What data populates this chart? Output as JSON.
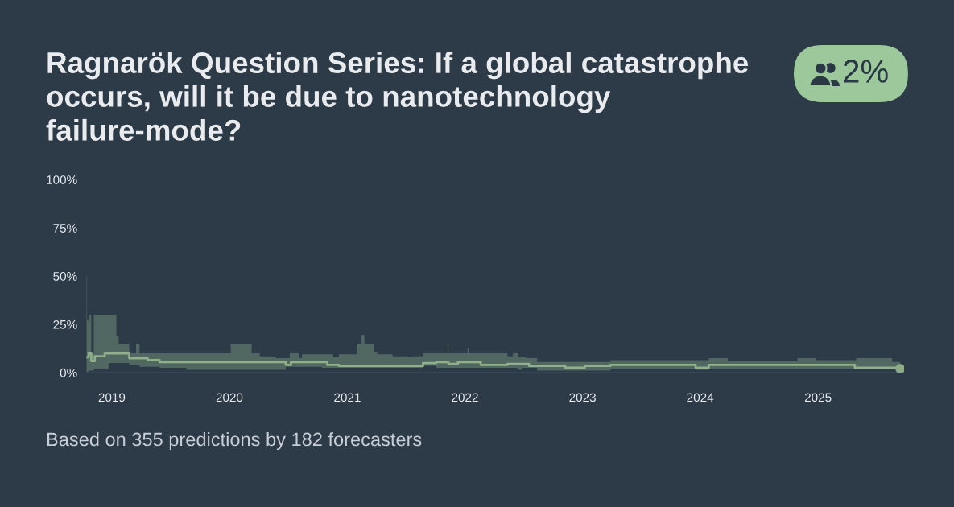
{
  "chart_data": {
    "type": "step",
    "title": "Ragnarök Question Series: If a global catastrophe occurs, will it be due to nanotechnology failure-mode?",
    "x": [
      "2018-10-14",
      "2018-10-16",
      "2018-10-21",
      "2018-10-29",
      "2018-11-06",
      "2018-11-09",
      "2018-12-10",
      "2018-12-22",
      "2019-01-15",
      "2019-01-22",
      "2019-02-24",
      "2019-03-17",
      "2019-03-28",
      "2019-04-22",
      "2019-05-29",
      "2019-08-20",
      "2020-01-05",
      "2020-03-10",
      "2020-04-04",
      "2020-05-24",
      "2020-06-24",
      "2020-07-06",
      "2020-07-10",
      "2020-08-04",
      "2020-08-13",
      "2020-10-14",
      "2020-10-31",
      "2020-11-18",
      "2020-12-06",
      "2021-02-01",
      "2021-02-13",
      "2021-02-23",
      "2021-03-24",
      "2021-04-04",
      "2021-05-21",
      "2021-07-09",
      "2021-07-21",
      "2021-08-24",
      "2021-10-04",
      "2021-11-08",
      "2021-11-11",
      "2021-12-10",
      "2022-01-09",
      "2022-01-12",
      "2022-02-19",
      "2022-05-13",
      "2022-05-30",
      "2022-06-15",
      "2022-06-28",
      "2022-07-10",
      "2022-07-19",
      "2022-08-13",
      "2022-11-08",
      "2023-01-08",
      "2023-03-29",
      "2023-12-18",
      "2024-01-28",
      "2024-03-27",
      "2024-10-29",
      "2024-12-25",
      "2025-04-25",
      "2025-04-29",
      "2025-08-19",
      "2025-09-13"
    ],
    "series": [
      {
        "color": "#8fb08a",
        "values": [
          8,
          8,
          10,
          6,
          6,
          8.5,
          10,
          10,
          10,
          10,
          7.5,
          7.5,
          7.5,
          6.5,
          5.5,
          5.5,
          5.5,
          5.5,
          5.5,
          5.5,
          4,
          4,
          5.5,
          5.5,
          5.5,
          5.5,
          4,
          4,
          3.5,
          3.5,
          3.5,
          3.5,
          3.5,
          3.5,
          3.5,
          3.5,
          3.5,
          5,
          5.5,
          5.5,
          4.5,
          5.5,
          5.5,
          5.5,
          4,
          4.5,
          4.5,
          4.5,
          4.5,
          4.5,
          3.5,
          3.5,
          2.5,
          3.5,
          4,
          2.5,
          4,
          4,
          4,
          4,
          2.5,
          2.5,
          2.5,
          2
        ],
        "lower": [
          0.5,
          0.5,
          1,
          1,
          2,
          2,
          2,
          5,
          5,
          5,
          4,
          4,
          3,
          3,
          2.5,
          1.5,
          1.5,
          1.5,
          1.5,
          1.5,
          3,
          3,
          3,
          3,
          3,
          2.5,
          2.5,
          2.5,
          2.5,
          2.5,
          2.5,
          2.5,
          2.5,
          2.5,
          2.5,
          2.5,
          2.5,
          3.5,
          2.5,
          2.5,
          2.5,
          2.5,
          2.5,
          2.5,
          2.5,
          2.5,
          2.5,
          1.5,
          2.5,
          2.5,
          2.5,
          1,
          1,
          1,
          2,
          1.5,
          2,
          2,
          2,
          2,
          2,
          2,
          2,
          1.5
        ],
        "upper": [
          50,
          27,
          30,
          10,
          30,
          30,
          30,
          30,
          19,
          15,
          10,
          15,
          10,
          10,
          10,
          10,
          15,
          10,
          8.5,
          7.5,
          7.5,
          10,
          10,
          7.5,
          9.5,
          9.5,
          9.5,
          8,
          9.5,
          15,
          19.5,
          15,
          10.5,
          9.5,
          8.5,
          8,
          8.5,
          10,
          10,
          15,
          10,
          10,
          13,
          10,
          10,
          8.5,
          10,
          8,
          8,
          7.5,
          7.5,
          5.5,
          5.5,
          5.5,
          6.5,
          6.5,
          7.5,
          6,
          7.5,
          6.5,
          6.5,
          7.5,
          5.5,
          5.5
        ]
      },
      {
        "type": "scatter",
        "color": "#8cab87",
        "marker": "circle",
        "x": [
          "2025-09-13"
        ],
        "values": [
          2
        ]
      }
    ],
    "xlim": [
      "2018-10-14",
      "2025-09-25"
    ],
    "xticks": [
      "2019",
      "2020",
      "2021",
      "2022",
      "2023",
      "2024",
      "2025"
    ],
    "ylim": [
      0,
      100
    ],
    "yticks": [
      {
        "value": 0,
        "label": "0%"
      },
      {
        "value": 25,
        "label": "25%"
      },
      {
        "value": 50,
        "label": "50%"
      },
      {
        "value": 75,
        "label": "75%"
      },
      {
        "value": 100,
        "label": "100%"
      }
    ],
    "grid": false,
    "annotations": [
      "2%",
      "Based on 355 predictions by 182 forecasters"
    ]
  }
}
